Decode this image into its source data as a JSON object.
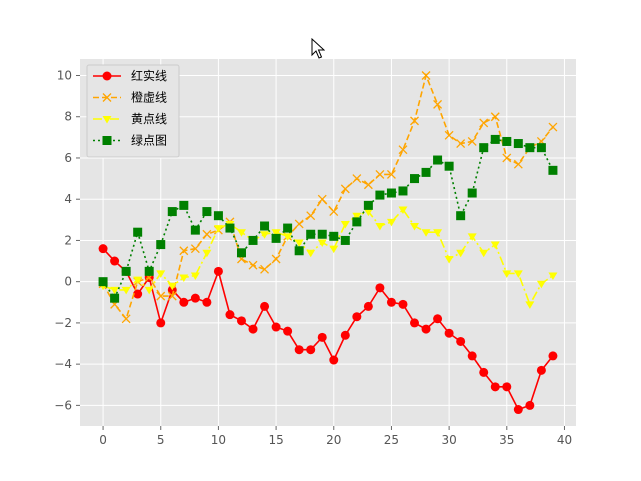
{
  "chart_data": {
    "type": "line",
    "x": [
      0,
      1,
      2,
      3,
      4,
      5,
      6,
      7,
      8,
      9,
      10,
      11,
      12,
      13,
      14,
      15,
      16,
      17,
      18,
      19,
      20,
      21,
      22,
      23,
      24,
      25,
      26,
      27,
      28,
      29,
      30,
      31,
      32,
      33,
      34,
      35,
      36,
      37,
      38,
      39
    ],
    "xlim": [
      -2,
      41
    ],
    "ylim": [
      -7,
      10.8
    ],
    "xticks": [
      0,
      5,
      10,
      15,
      20,
      25,
      30,
      35,
      40
    ],
    "yticks": [
      -6,
      -4,
      -2,
      0,
      2,
      4,
      6,
      8,
      10
    ],
    "grid": true,
    "legend_position": "top-left",
    "series": [
      {
        "name": "红实线",
        "color": "#ff0000",
        "line_style": "solid",
        "marker": "circle",
        "values": [
          1.6,
          1.0,
          0.5,
          -0.6,
          0.2,
          -2.0,
          -0.4,
          -1.0,
          -0.8,
          -1.0,
          0.5,
          -1.6,
          -1.9,
          -2.3,
          -1.2,
          -2.2,
          -2.4,
          -3.3,
          -3.3,
          -2.7,
          -3.8,
          -2.6,
          -1.7,
          -1.2,
          -0.3,
          -1.0,
          -1.1,
          -2.0,
          -2.3,
          -1.8,
          -2.5,
          -2.9,
          -3.6,
          -4.4,
          -5.1,
          -5.1,
          -6.2,
          -6.0,
          -4.3,
          -3.6
        ]
      },
      {
        "name": "橙虚线",
        "color": "#ffa500",
        "line_style": "dashed",
        "marker": "x",
        "values": [
          -0.1,
          -1.1,
          -1.8,
          0.0,
          0.2,
          -0.7,
          -0.7,
          1.5,
          1.6,
          2.3,
          2.5,
          2.9,
          1.1,
          0.8,
          0.6,
          1.1,
          2.2,
          2.8,
          3.2,
          4.0,
          3.4,
          4.5,
          5.0,
          4.7,
          5.2,
          5.2,
          6.4,
          7.8,
          10.0,
          8.6,
          7.1,
          6.7,
          6.8,
          7.7,
          8.0,
          6.0,
          5.7,
          6.5,
          6.8,
          7.5
        ]
      },
      {
        "name": "黄点线",
        "color": "#ffff00",
        "line_style": "dashdot",
        "marker": "triangle",
        "values": [
          -0.2,
          -0.4,
          -0.4,
          0.1,
          -0.4,
          0.4,
          -0.2,
          0.2,
          0.3,
          1.4,
          2.6,
          2.8,
          2.4,
          2.0,
          2.3,
          2.4,
          2.2,
          1.9,
          1.4,
          1.9,
          1.6,
          2.8,
          3.2,
          3.4,
          2.7,
          2.9,
          3.5,
          2.7,
          2.4,
          2.4,
          1.1,
          1.4,
          2.2,
          1.4,
          1.8,
          0.4,
          0.4,
          -1.1,
          -0.1,
          0.3
        ]
      },
      {
        "name": "绿点图",
        "color": "#008000",
        "line_style": "dotted",
        "marker": "square",
        "values": [
          0.0,
          -0.8,
          0.5,
          2.4,
          0.5,
          1.8,
          3.4,
          3.7,
          2.5,
          3.4,
          3.2,
          2.6,
          1.4,
          2.0,
          2.7,
          2.1,
          2.6,
          1.5,
          2.3,
          2.3,
          2.2,
          2.0,
          2.9,
          3.7,
          4.2,
          4.3,
          4.4,
          5.0,
          5.3,
          5.9,
          5.6,
          3.2,
          4.3,
          6.5,
          6.9,
          6.8,
          6.7,
          6.5,
          6.5,
          5.4
        ]
      }
    ]
  }
}
